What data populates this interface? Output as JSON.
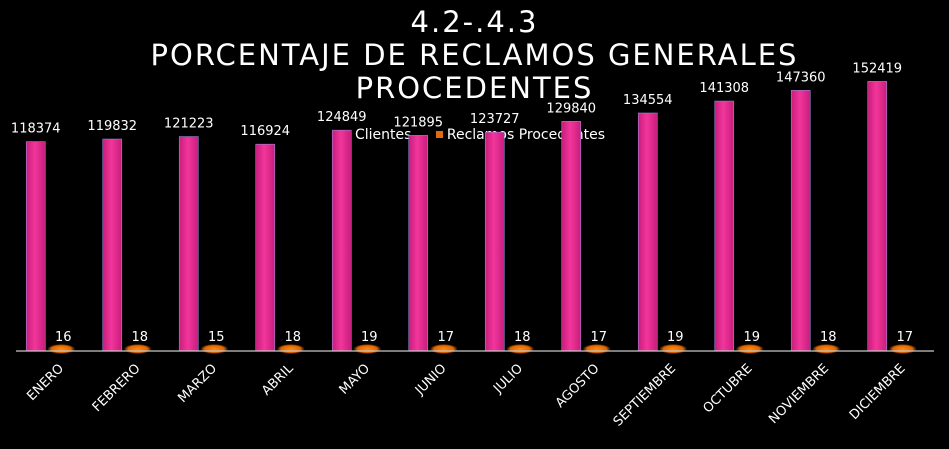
{
  "chart_data": {
    "type": "bar",
    "title_lines": [
      "4.2-.4.3",
      "PORCENTAJE DE RECLAMOS GENERALES",
      "PROCEDENTES"
    ],
    "categories": [
      "ENERO",
      "FEBRERO",
      "MARZO",
      "ABRIL",
      "MAYO",
      "JUNIO",
      "JULIO",
      "AGOSTO",
      "SEPTIEMBRE",
      "OCTUBRE",
      "NOVIEMBRE",
      "DICIEMBRE"
    ],
    "series": [
      {
        "name": "Clientes",
        "color": "#e8288f",
        "legend_color": "#8a72d8",
        "values": [
          118374,
          119832,
          121223,
          116924,
          124849,
          121895,
          123727,
          129840,
          134554,
          141308,
          147360,
          152419
        ],
        "labels": [
          "118374",
          "119832",
          "121223",
          "116924",
          "124849",
          "121895",
          "123727",
          "129840",
          "134554",
          "141308",
          "147360",
          "152419"
        ]
      },
      {
        "name": "Reclamos Procedentes",
        "color": "#f07300",
        "legend_color": "#e06a10",
        "values": [
          16,
          18,
          15,
          18,
          19,
          17,
          18,
          17,
          19,
          19,
          18,
          17
        ],
        "labels": [
          "16",
          "18",
          "15",
          "18",
          "19",
          "17",
          "18",
          "17",
          "19",
          "19",
          "18",
          "17"
        ]
      }
    ],
    "ylim": [
      0,
      160000
    ],
    "legend_position": "top",
    "grid": false,
    "xlabel": "",
    "ylabel": ""
  }
}
